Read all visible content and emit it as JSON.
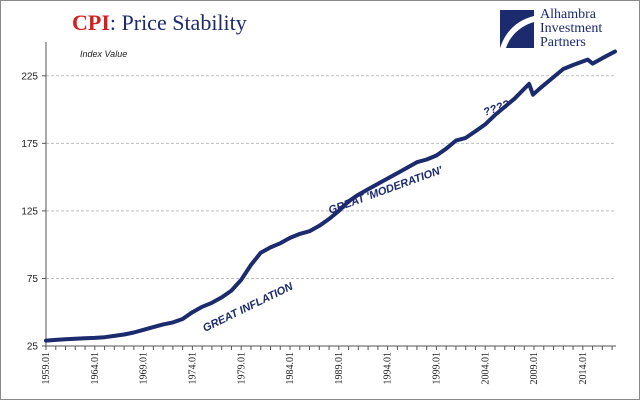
{
  "title": {
    "prefix": "CPI",
    "rest": ": Price Stability"
  },
  "logo": {
    "line1": "Alhambra",
    "line2": "Investment",
    "line3": "Partners"
  },
  "colors": {
    "line": "#1c2a6e",
    "title_prefix": "#d41f1f",
    "title": "#1c2a6e",
    "grid": "#bfbfbf"
  },
  "chart_data": {
    "type": "line",
    "ylabel": "Index Value",
    "xlabel": "",
    "ylim": [
      25,
      250
    ],
    "yticks": [
      25,
      75,
      125,
      175,
      225
    ],
    "xlim": [
      1959.0,
      2017.4
    ],
    "xtick_labels": [
      "1959.01",
      "1964.01",
      "1969.01",
      "1974.01",
      "1979.01",
      "1984.01",
      "1989.01",
      "1994.01",
      "1999.01",
      "2004.01",
      "2009.01",
      "2014.01"
    ],
    "grid": true,
    "series": [
      {
        "x": [
          1959.0,
          1960,
          1961,
          1962,
          1963,
          1964,
          1965,
          1966,
          1967,
          1968,
          1969,
          1970,
          1971,
          1972,
          1973,
          1974,
          1975,
          1976,
          1977,
          1978,
          1979,
          1980,
          1981,
          1982,
          1983,
          1984,
          1985,
          1986,
          1987,
          1988,
          1989,
          1990,
          1991,
          1992,
          1993,
          1994,
          1995,
          1996,
          1997,
          1998,
          1999,
          2000,
          2001,
          2002,
          2003,
          2004,
          2005,
          2006,
          2007,
          2008.5,
          2008.9,
          2009.5,
          2010,
          2011,
          2012,
          2013,
          2014.5,
          2015.0,
          2016,
          2017.3
        ],
        "values": [
          29,
          29.5,
          30,
          30.3,
          30.7,
          31,
          31.5,
          32.5,
          33.5,
          35,
          37,
          39,
          41,
          42.5,
          45,
          50,
          54,
          57,
          61,
          66,
          74,
          85,
          94,
          98,
          101,
          105,
          108,
          110,
          114,
          119,
          125,
          132,
          137,
          141,
          145,
          149,
          153,
          157,
          161,
          163,
          166,
          171,
          177,
          179,
          184,
          189,
          196,
          202,
          208,
          219,
          211,
          215,
          218,
          224,
          230,
          233,
          237,
          234,
          238,
          243
        ]
      }
    ],
    "annotations": [
      "GREAT INFLATION",
      "GREAT 'MODERATION'",
      "????"
    ]
  }
}
